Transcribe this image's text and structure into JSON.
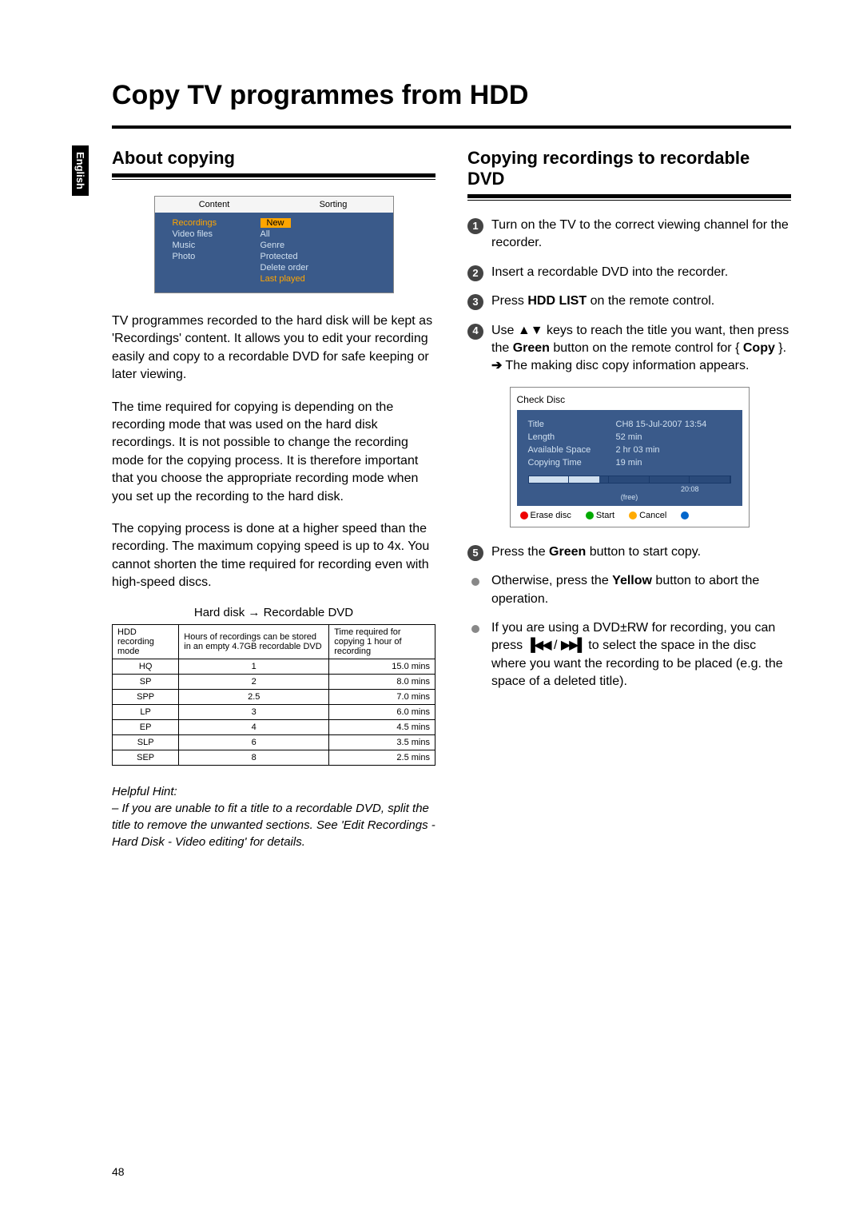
{
  "language_tab": "English",
  "page_title": "Copy TV programmes from HDD",
  "page_number": "48",
  "left": {
    "heading": "About copying",
    "menu": {
      "header_left": "Content",
      "header_right": "Sorting",
      "content_items": [
        "Recordings",
        "Video files",
        "Music",
        "Photo"
      ],
      "sorting_items": [
        "New",
        "All",
        "Genre",
        "Protected",
        "Delete order",
        "Last played"
      ],
      "colors": {
        "bg": "#3a5a8a",
        "text": "#d0e0f0",
        "highlight_bg": "#ffa500",
        "last_played": "#ffa500"
      }
    },
    "para1": "TV programmes recorded to the hard disk will be kept as 'Recordings' content. It allows you to edit your recording easily and copy to a recordable DVD for safe keeping or later viewing.",
    "para2": "The time required for copying is depending on the recording mode that was used on the hard disk recordings.  It is not possible to change the recording mode for the copying process. It is therefore important that you choose the appropriate recording mode when you set up the recording to the hard disk.",
    "para3": "The copying process is done at a higher speed than the recording. The maximum copying speed is up to 4x.  You cannot shorten the time required for recording even with high-speed discs.",
    "table_caption": "Hard disk → Recordable DVD",
    "table": {
      "headers": [
        "HDD recording mode",
        "Hours of recordings can be stored in an empty 4.7GB recordable DVD",
        "Time required for copying 1 hour of recording"
      ],
      "rows": [
        [
          "HQ",
          "1",
          "15.0 mins"
        ],
        [
          "SP",
          "2",
          "8.0 mins"
        ],
        [
          "SPP",
          "2.5",
          "7.0 mins"
        ],
        [
          "LP",
          "3",
          "6.0 mins"
        ],
        [
          "EP",
          "4",
          "4.5 mins"
        ],
        [
          "SLP",
          "6",
          "3.5 mins"
        ],
        [
          "SEP",
          "8",
          "2.5 mins"
        ]
      ]
    },
    "hint_label": "Helpful Hint:",
    "hint_text": "– If you are unable to fit a title to a recordable DVD, split the title to remove the unwanted sections. See 'Edit Recordings - Hard Disk - Video editing' for details."
  },
  "right": {
    "heading": "Copying recordings to recordable DVD",
    "step1": "Turn on the TV to the correct viewing channel for the recorder.",
    "step2": "Insert a recordable DVD into the recorder.",
    "step3_a": "Press ",
    "step3_b": "HDD LIST",
    "step3_c": " on the remote control.",
    "step4_a": "Use ▲▼ keys to reach the title you want, then press the ",
    "step4_b": "Green",
    "step4_c": " button on the remote control for { ",
    "step4_d": "Copy",
    "step4_e": " }.",
    "step4_result": "The making disc copy information appears.",
    "check_disc": {
      "title": "Check Disc",
      "rows": [
        [
          "Title",
          "CH8 15-Jul-2007 13:54"
        ],
        [
          "Length",
          "52 min"
        ],
        [
          "Available Space",
          "2 hr 03 min"
        ],
        [
          "Copying Time",
          "19 min"
        ]
      ],
      "progress_value": "20:08",
      "progress_label": "(free)",
      "footer": [
        {
          "color": "#e00",
          "label": "Erase disc"
        },
        {
          "color": "#0a0",
          "label": "Start"
        },
        {
          "color": "#fa0",
          "label": "Cancel"
        },
        {
          "color": "#06c",
          "label": ""
        }
      ]
    },
    "step5_a": "Press the ",
    "step5_b": "Green",
    "step5_c": " button to start copy.",
    "bullet1_a": "Otherwise, press the ",
    "bullet1_b": "Yellow",
    "bullet1_c": " button to abort the operation.",
    "bullet2_a": "If you are using a DVD±RW for recording, you can press ",
    "bullet2_b": " to select the space in the disc where you want the recording to be placed (e.g. the space of a deleted title)."
  }
}
